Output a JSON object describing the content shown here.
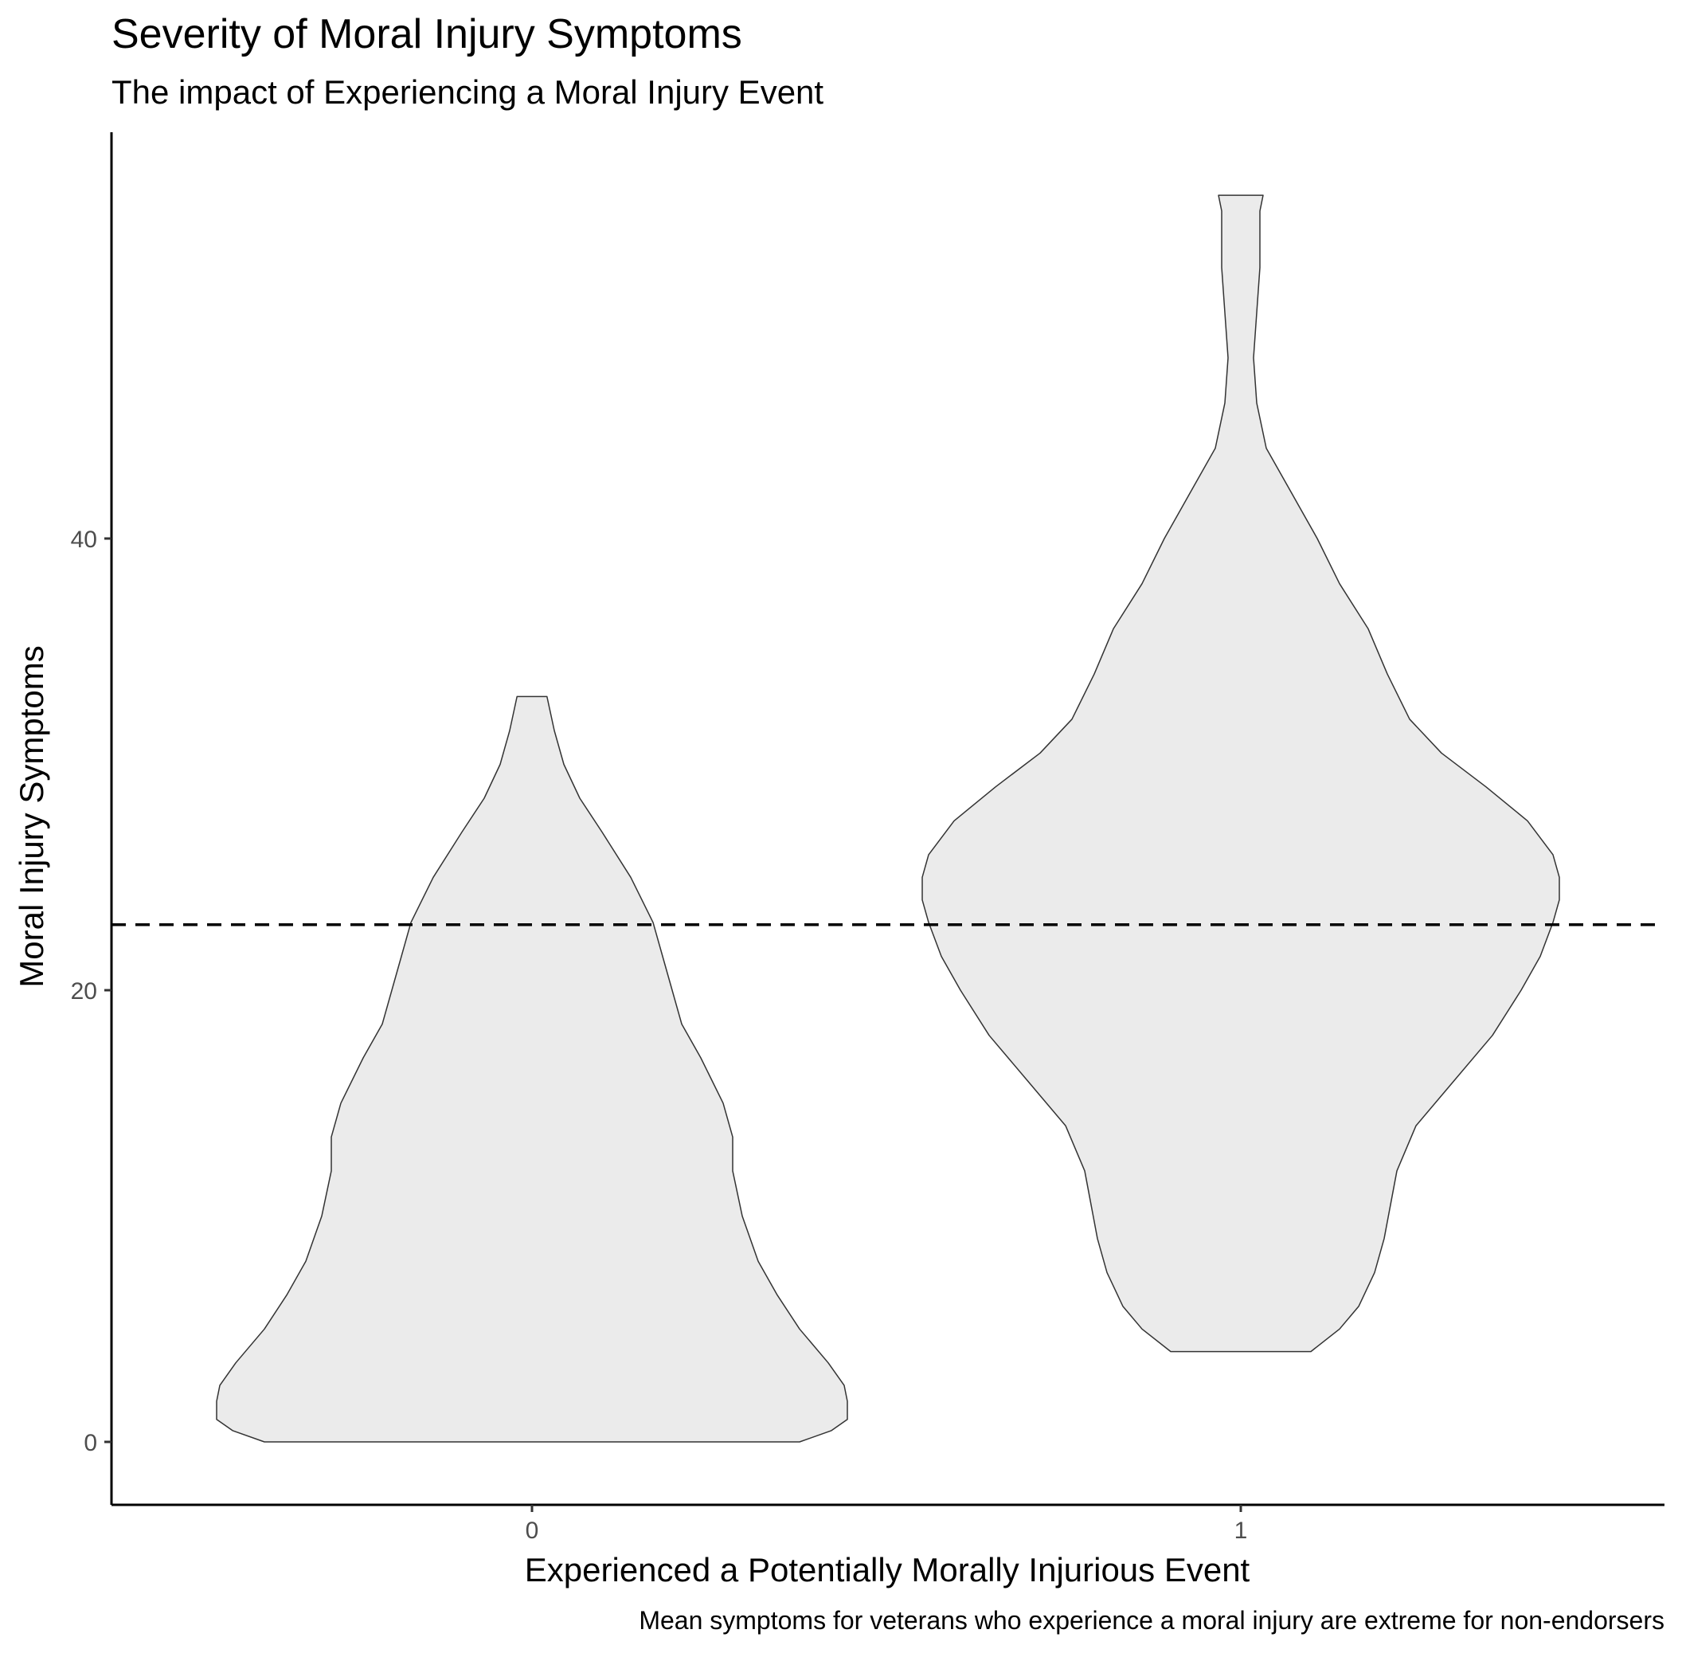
{
  "chart_data": {
    "type": "violin",
    "title": "Severity of Moral Injury Symptoms",
    "subtitle": "The impact of Experiencing a Moral Injury Event",
    "xlabel": "Experienced a Potentially Morally Injurious Event",
    "ylabel": "Moral Injury Symptoms",
    "caption": "Mean symptoms for veterans who experience a moral injury are extreme for non-endorsers",
    "categories": [
      "0",
      "1"
    ],
    "y_ticks": [
      0,
      20,
      40
    ],
    "ylim": [
      -2.8,
      58
    ],
    "grid": false,
    "reference_line": {
      "y": 22.9,
      "style": "dashed"
    },
    "fill_color": "#ebebeb",
    "stroke_color": "#333333",
    "series": [
      {
        "category": "0",
        "min": 0,
        "max": 33,
        "density_profile": [
          [
            0,
            0.84
          ],
          [
            0.5,
            0.94
          ],
          [
            1.0,
            0.99
          ],
          [
            1.8,
            0.99
          ],
          [
            2.5,
            0.98
          ],
          [
            3.5,
            0.93
          ],
          [
            5,
            0.84
          ],
          [
            6.5,
            0.77
          ],
          [
            8,
            0.71
          ],
          [
            10,
            0.66
          ],
          [
            12,
            0.63
          ],
          [
            13.5,
            0.63
          ],
          [
            15,
            0.6
          ],
          [
            17,
            0.53
          ],
          [
            18.5,
            0.47
          ],
          [
            20,
            0.44
          ],
          [
            21.5,
            0.41
          ],
          [
            23,
            0.38
          ],
          [
            25,
            0.31
          ],
          [
            27,
            0.22
          ],
          [
            28.5,
            0.15
          ],
          [
            30,
            0.1
          ],
          [
            31.5,
            0.07
          ],
          [
            33,
            0.047
          ]
        ]
      },
      {
        "category": "1",
        "min": 4,
        "max": 55.2,
        "density_profile": [
          [
            4,
            0.22
          ],
          [
            5,
            0.31
          ],
          [
            6,
            0.37
          ],
          [
            7.5,
            0.42
          ],
          [
            9,
            0.45
          ],
          [
            10.5,
            0.47
          ],
          [
            12,
            0.49
          ],
          [
            14,
            0.55
          ],
          [
            16,
            0.67
          ],
          [
            18,
            0.79
          ],
          [
            20,
            0.88
          ],
          [
            21.5,
            0.94
          ],
          [
            23,
            0.98
          ],
          [
            24,
            1.0
          ],
          [
            25,
            1.0
          ],
          [
            26,
            0.98
          ],
          [
            27.5,
            0.9
          ],
          [
            29,
            0.77
          ],
          [
            30.5,
            0.63
          ],
          [
            32,
            0.53
          ],
          [
            34,
            0.46
          ],
          [
            36,
            0.4
          ],
          [
            38,
            0.31
          ],
          [
            40,
            0.24
          ],
          [
            42,
            0.16
          ],
          [
            44,
            0.08
          ],
          [
            46,
            0.05
          ],
          [
            48,
            0.04
          ],
          [
            50,
            0.05
          ],
          [
            52,
            0.06
          ],
          [
            53.5,
            0.06
          ],
          [
            54.5,
            0.06
          ],
          [
            55.2,
            0.07
          ]
        ]
      }
    ]
  }
}
